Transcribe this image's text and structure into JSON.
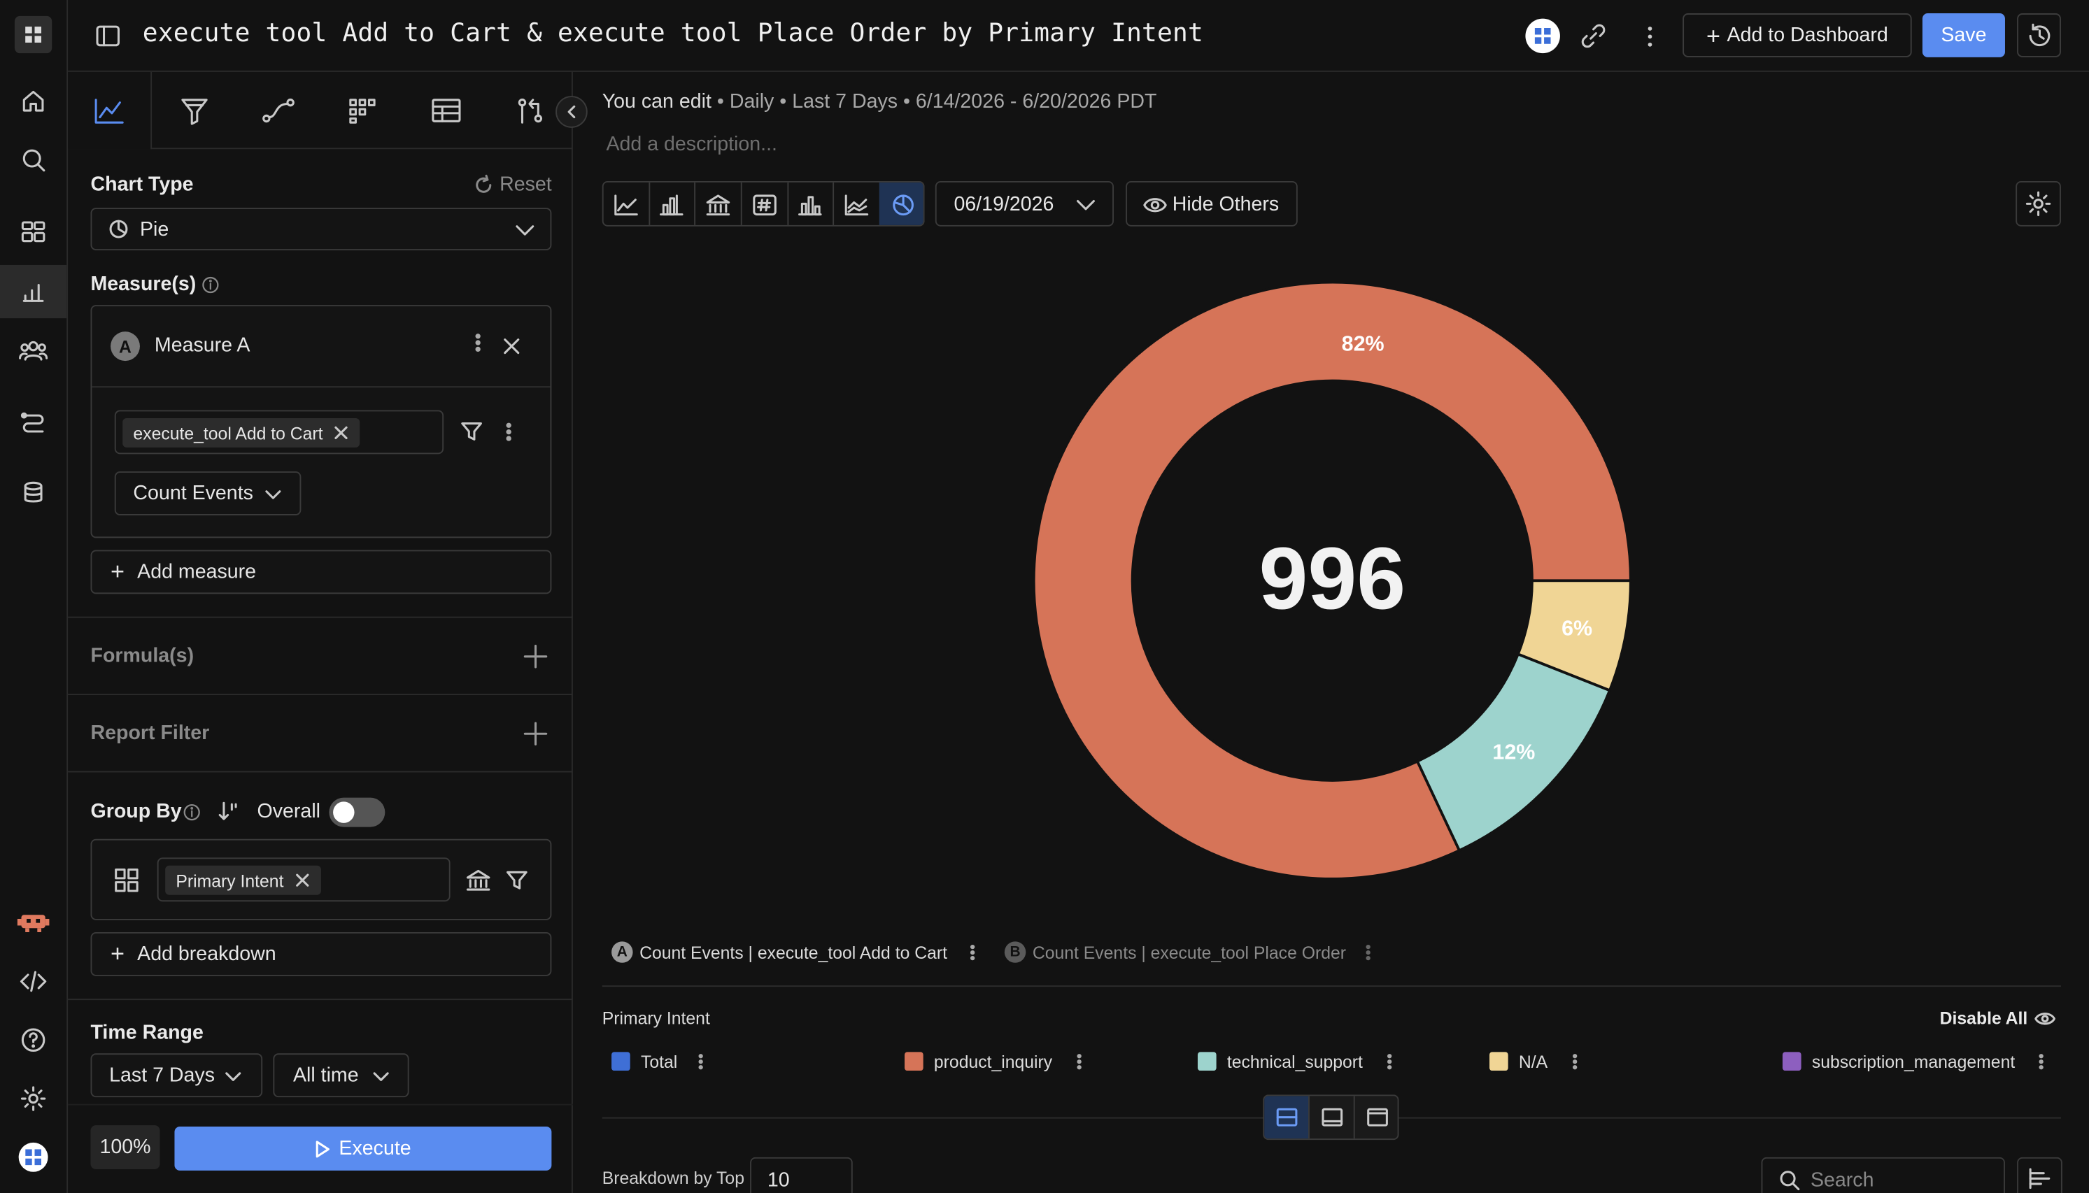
{
  "header": {
    "title": "execute tool Add to Cart & execute tool Place Order by Primary Intent",
    "add_dashboard_label": "Add to Dashboard",
    "save_label": "Save"
  },
  "meta": {
    "edit_status": "You can edit",
    "summary": " • Daily • Last 7 Days • 6/14/2026 - 6/20/2026 PDT",
    "description_placeholder": "Add a description..."
  },
  "panel": {
    "chart_type_label": "Chart Type",
    "reset_label": "Reset",
    "chart_type_value": "Pie",
    "measures_label": "Measure(s)",
    "measure_letter": "A",
    "measure_name": "Measure A",
    "event_chip": "execute_tool Add to Cart",
    "count_events_label": "Count Events",
    "add_measure_label": "Add measure",
    "formulas_label": "Formula(s)",
    "report_filter_label": "Report Filter",
    "group_by_label": "Group By",
    "overall_label": "Overall",
    "breakdown_chip": "Primary Intent",
    "add_breakdown_label": "Add breakdown",
    "time_range_label": "Time Range",
    "time_range_value": "Last 7 Days",
    "all_time_value": "All time",
    "zoom": "100%",
    "execute_label": "Execute"
  },
  "toolbar": {
    "date_value": "06/19/2026",
    "hide_others_label": "Hide Others"
  },
  "chart_data": {
    "type": "pie",
    "center_value": "996",
    "series": [
      {
        "name": "product_inquiry",
        "value": 82,
        "label": "82%",
        "color": "#d67458"
      },
      {
        "name": "technical_support",
        "value": 12,
        "label": "12%",
        "color": "#9dd3cd"
      },
      {
        "name": "N/A",
        "value": 6,
        "label": "6%",
        "color": "#f0d595"
      }
    ]
  },
  "measure_legend": {
    "a_letter": "A",
    "a_label": "Count Events | execute_tool Add to Cart",
    "b_letter": "B",
    "b_label": "Count Events | execute_tool Place Order"
  },
  "breakdown_legend": {
    "title": "Primary Intent",
    "disable_all_label": "Disable All",
    "items": [
      {
        "label": "Total",
        "color": "#3f6fd6"
      },
      {
        "label": "product_inquiry",
        "color": "#d67458"
      },
      {
        "label": "technical_support",
        "color": "#9dd3cd"
      },
      {
        "label": "N/A",
        "color": "#f0d595"
      },
      {
        "label": "subscription_management",
        "color": "#8d5fbf"
      }
    ]
  },
  "bottom": {
    "breakdown_top_label": "Breakdown by Top",
    "breakdown_top_value": "10",
    "search_placeholder": "Search"
  }
}
